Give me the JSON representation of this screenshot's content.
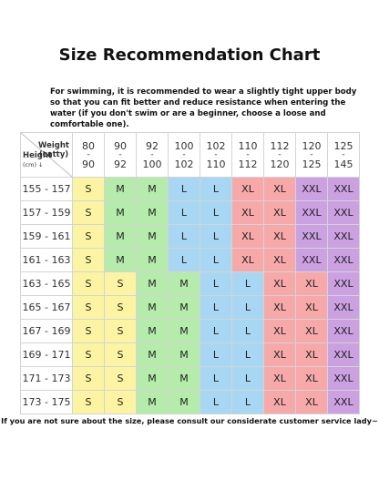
{
  "title": "Size Recommendation Chart",
  "note": "For swimming, it is recommended to wear a slightly tight upper body so that you can fit better and reduce resistance when entering the water (if you don't swim or are a beginner, choose a loose and comfortable one).",
  "footer": "If you are not sure about the size, please consult our considerate customer service lady~",
  "corner": {
    "weight_label": "Weight",
    "weight_unit": "(catty)",
    "height_label": "Height",
    "height_unit": "(cm) ↓"
  },
  "columns": [
    {
      "top": "80",
      "sep": "-",
      "bottom": "90"
    },
    {
      "top": "90",
      "sep": "-",
      "bottom": "92"
    },
    {
      "top": "92",
      "sep": "-",
      "bottom": "100"
    },
    {
      "top": "100",
      "sep": "-",
      "bottom": "102"
    },
    {
      "top": "102",
      "sep": "-",
      "bottom": "110"
    },
    {
      "top": "110",
      "sep": "-",
      "bottom": "112"
    },
    {
      "top": "112",
      "sep": "-",
      "bottom": "120"
    },
    {
      "top": "120",
      "sep": "-",
      "bottom": "125"
    },
    {
      "top": "125",
      "sep": "-",
      "bottom": "145"
    }
  ],
  "rows": [
    {
      "height": "155 - 157",
      "sizes": [
        "S",
        "M",
        "M",
        "L",
        "L",
        "XL",
        "XL",
        "XXL",
        "XXL"
      ]
    },
    {
      "height": "157 - 159",
      "sizes": [
        "S",
        "M",
        "M",
        "L",
        "L",
        "XL",
        "XL",
        "XXL",
        "XXL"
      ]
    },
    {
      "height": "159 - 161",
      "sizes": [
        "S",
        "M",
        "M",
        "L",
        "L",
        "XL",
        "XL",
        "XXL",
        "XXL"
      ]
    },
    {
      "height": "161 - 163",
      "sizes": [
        "S",
        "M",
        "M",
        "L",
        "L",
        "XL",
        "XL",
        "XXL",
        "XXL"
      ]
    },
    {
      "height": "163 - 165",
      "sizes": [
        "S",
        "S",
        "M",
        "M",
        "L",
        "L",
        "XL",
        "XL",
        "XXL"
      ]
    },
    {
      "height": "165 - 167",
      "sizes": [
        "S",
        "S",
        "M",
        "M",
        "L",
        "L",
        "XL",
        "XL",
        "XXL"
      ]
    },
    {
      "height": "167 - 169",
      "sizes": [
        "S",
        "S",
        "M",
        "M",
        "L",
        "L",
        "XL",
        "XL",
        "XXL"
      ]
    },
    {
      "height": "169 - 171",
      "sizes": [
        "S",
        "S",
        "M",
        "M",
        "L",
        "L",
        "XL",
        "XL",
        "XXL"
      ]
    },
    {
      "height": "171 - 173",
      "sizes": [
        "S",
        "S",
        "M",
        "M",
        "L",
        "L",
        "XL",
        "XL",
        "XXL"
      ]
    },
    {
      "height": "173 - 175",
      "sizes": [
        "S",
        "S",
        "M",
        "M",
        "L",
        "L",
        "XL",
        "XL",
        "XXL"
      ]
    }
  ],
  "colors": {
    "S": "#fdf4a3",
    "M": "#b6ecab",
    "L": "#a8d7f4",
    "XL": "#f7a9a9",
    "XXL": "#cba1e2",
    "header_bg": "#ffffff",
    "grid": "#d4d4d4"
  }
}
